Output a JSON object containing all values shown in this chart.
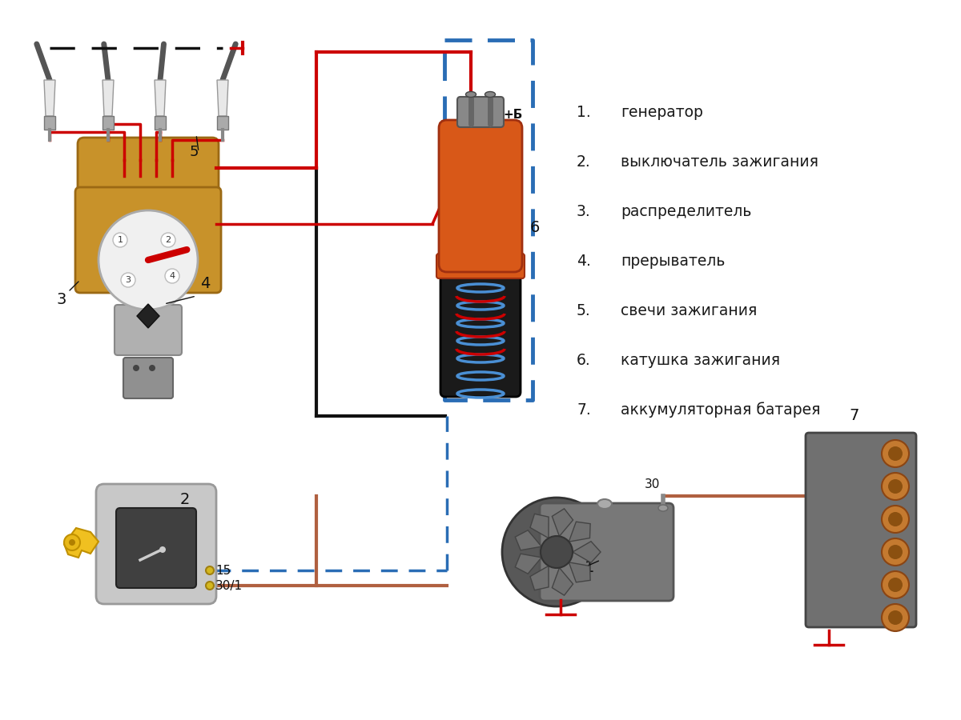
{
  "bg_color": "#ffffff",
  "legend_items": [
    {
      "num": "1.",
      "text": "генератор"
    },
    {
      "num": "2.",
      "text": "выключатель зажигания"
    },
    {
      "num": "3.",
      "text": "распределитель"
    },
    {
      "num": "4.",
      "text": "прерыватель"
    },
    {
      "num": "5.",
      "text": "свечи зажигания"
    },
    {
      "num": "6.",
      "text": "катушка зажигания"
    },
    {
      "num": "7.",
      "text": "аккумуляторная батарея"
    }
  ],
  "red_wire": "#cc0000",
  "blue_border": "#2a6db5",
  "black_wire": "#111111",
  "brown_wire": "#b06040",
  "label_color": "#1a1a1a"
}
